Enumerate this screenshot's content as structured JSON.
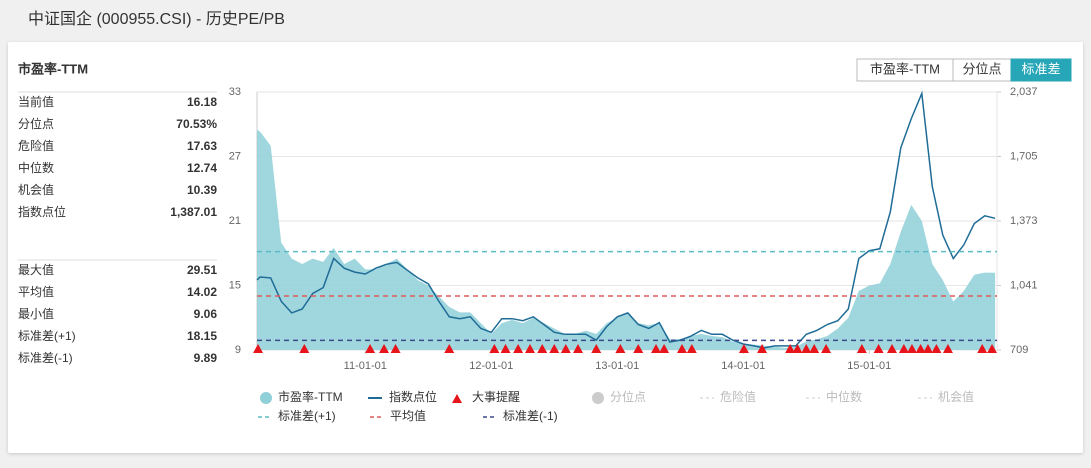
{
  "header": {
    "title": "中证国企 (000955.CSI) - 历史PE/PB"
  },
  "panel": {
    "title": "市盈率-TTM",
    "group1": [
      [
        "当前值",
        "16.18"
      ],
      [
        "分位点",
        "70.53%"
      ],
      [
        "危险值",
        "17.63"
      ],
      [
        "中位数",
        "12.74"
      ],
      [
        "机会值",
        "10.39"
      ],
      [
        "指数点位",
        "1,387.01"
      ]
    ],
    "group2": [
      [
        "最大值",
        "29.51"
      ],
      [
        "平均值",
        "14.02"
      ],
      [
        "最小值",
        "9.06"
      ],
      [
        "标准差(+1)",
        "18.15"
      ],
      [
        "标准差(-1)",
        "9.89"
      ]
    ]
  },
  "buttons": [
    "市盈率-TTM",
    "分位点",
    "标准差"
  ],
  "chart_data": {
    "type": "line",
    "x": [
      "10-02-22",
      "10-03-01",
      "10-04-01",
      "10-05-01",
      "10-06-01",
      "10-07-01",
      "10-08-01",
      "10-09-01",
      "10-10-01",
      "10-11-01",
      "10-12-01",
      "11-01-01",
      "11-02-01",
      "11-03-01",
      "11-04-01",
      "11-05-01",
      "11-06-01",
      "11-07-01",
      "11-08-01",
      "11-09-01",
      "11-10-01",
      "11-11-01",
      "11-12-01",
      "12-01-01",
      "12-02-01",
      "12-03-01",
      "12-04-01",
      "12-05-01",
      "12-06-01",
      "12-07-01",
      "12-08-01",
      "12-09-01",
      "12-10-01",
      "12-11-01",
      "12-12-01",
      "13-01-01",
      "13-02-01",
      "13-03-01",
      "13-04-01",
      "13-05-01",
      "13-06-01",
      "13-07-01",
      "13-08-01",
      "13-09-01",
      "13-10-01",
      "13-11-01",
      "13-12-01",
      "14-01-01",
      "14-02-01",
      "14-03-01",
      "14-04-01",
      "14-05-01",
      "14-06-01",
      "14-07-01",
      "14-08-01",
      "14-09-01",
      "14-10-01",
      "14-11-01",
      "14-12-01",
      "15-01-01",
      "15-02-01",
      "15-03-01",
      "15-04-01",
      "15-05-01",
      "15-06-01",
      "15-07-01",
      "15-08-01",
      "15-09-01",
      "15-10-01",
      "15-11-01",
      "15-12-01",
      "15-12-31"
    ],
    "series": [
      {
        "name": "市盈率-TTM",
        "color": "#8fd0d8",
        "style": "area",
        "values": [
          29.5,
          29.3,
          28,
          19,
          17.5,
          17,
          17.5,
          17.2,
          18.5,
          17,
          17.5,
          16.5,
          16.5,
          17,
          17.5,
          16.5,
          15.5,
          15,
          14,
          13,
          12.5,
          12.5,
          11.5,
          10.5,
          11.5,
          11.8,
          11.5,
          12,
          11.5,
          11,
          10.5,
          10.5,
          10.8,
          10.5,
          11.5,
          12,
          12.5,
          11.5,
          11.3,
          11.5,
          10,
          10,
          10.3,
          10.5,
          10.3,
          10.2,
          9.8,
          9.6,
          9.5,
          9.4,
          9.3,
          9.2,
          9.3,
          9.8,
          10,
          10.3,
          11,
          12,
          14.5,
          15,
          15.2,
          17,
          20,
          22.5,
          21,
          17,
          15.5,
          13.5,
          14.5,
          16,
          16.2,
          16.18
        ]
      },
      {
        "name": "指数点位",
        "color": "#1f6c97",
        "axis": "y2",
        "style": "line",
        "values": [
          1070,
          1085,
          1080,
          960,
          900,
          920,
          1000,
          1030,
          1180,
          1130,
          1110,
          1100,
          1130,
          1150,
          1160,
          1120,
          1080,
          1050,
          960,
          880,
          870,
          880,
          820,
          800,
          870,
          870,
          860,
          880,
          840,
          800,
          790,
          790,
          790,
          760,
          830,
          880,
          900,
          840,
          820,
          850,
          750,
          760,
          780,
          810,
          790,
          790,
          760,
          740,
          730,
          720,
          730,
          730,
          730,
          790,
          810,
          840,
          860,
          920,
          1180,
          1220,
          1230,
          1420,
          1750,
          1900,
          2030,
          1550,
          1300,
          1180,
          1250,
          1360,
          1400,
          1387.01
        ]
      }
    ],
    "events": {
      "name": "大事提醒",
      "color": "#e8141b",
      "x": [
        "10-02-25",
        "10-07-07",
        "11-01-15",
        "11-02-25",
        "11-03-28",
        "11-09-01",
        "12-01-10",
        "12-02-12",
        "12-03-18",
        "12-04-22",
        "12-05-27",
        "12-07-01",
        "12-08-04",
        "12-09-09",
        "12-11-01",
        "13-01-10",
        "13-03-01",
        "13-04-22",
        "13-05-15",
        "13-07-06",
        "13-08-04",
        "14-01-03",
        "14-02-25",
        "14-05-15",
        "14-06-06",
        "14-07-01",
        "14-07-24",
        "14-08-28",
        "14-12-10",
        "15-01-28",
        "15-03-06",
        "15-04-10",
        "15-05-03",
        "15-05-28",
        "15-06-19",
        "15-07-13",
        "15-08-16",
        "15-11-24",
        "15-12-22"
      ]
    },
    "ref_lines": [
      {
        "name": "标准差(+1)",
        "value": 18.15,
        "color": "#5bbcc4"
      },
      {
        "name": "平均值",
        "value": 14.02,
        "color": "#e05a5a"
      },
      {
        "name": "标准差(-1)",
        "value": 9.89,
        "color": "#3b4a8a"
      }
    ],
    "inactive_legend": [
      "分位点",
      "危险值",
      "中位数",
      "机会值"
    ],
    "xlim": [
      "10-02-22",
      "16-01-06"
    ],
    "xticks": [
      "11-01-01",
      "12-01-01",
      "13-01-01",
      "14-01-01",
      "15-01-01"
    ],
    "ylim": [
      9,
      33
    ],
    "yticks": [
      9,
      15,
      21,
      27,
      33
    ],
    "y2lim": [
      709,
      2037
    ],
    "y2ticks": [
      709,
      {
        "value": 1041,
        "label": "1,041"
      },
      {
        "value": 1373,
        "label": "1,373"
      },
      {
        "value": 1705,
        "label": "1,705"
      },
      {
        "value": 2037,
        "label": "2,037"
      }
    ],
    "grid": true
  }
}
